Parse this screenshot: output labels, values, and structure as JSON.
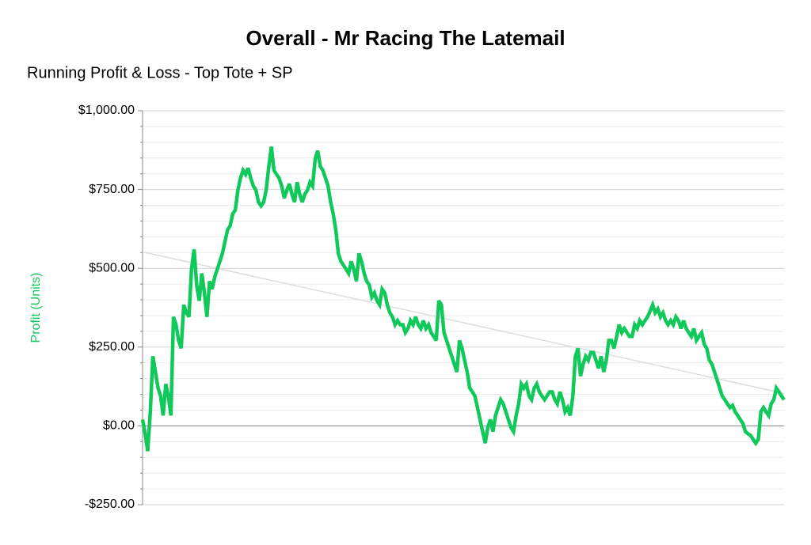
{
  "chart_data": {
    "type": "line",
    "title": "Overall - Mr Racing The Latemail",
    "subtitle": "Running Profit & Loss - Top Tote + SP",
    "y_label": "Profit (Units)",
    "color": "#10c95a",
    "ylim": [
      -250,
      1000
    ],
    "yticks": [
      {
        "value": -250,
        "label": "-$250.00"
      },
      {
        "value": 0,
        "label": "$0.00"
      },
      {
        "value": 250,
        "label": "$250.00"
      },
      {
        "value": 500,
        "label": "$500.00"
      },
      {
        "value": 750,
        "label": "$750.00"
      },
      {
        "value": 1000,
        "label": "$1,000.00"
      }
    ],
    "minor_yticks": [
      -200,
      -150,
      -100,
      -50,
      50,
      100,
      150,
      200,
      300,
      350,
      400,
      450,
      550,
      600,
      650,
      700,
      800,
      850,
      900,
      950
    ],
    "grid": true,
    "zero_line": true,
    "trend_line": {
      "values": [
        552,
        103
      ],
      "color": "#dddddd"
    },
    "values": [
      20,
      -25,
      -80,
      45,
      221,
      171,
      120,
      95,
      33,
      133,
      95,
      33,
      346,
      321,
      271,
      246,
      384,
      359,
      346,
      497,
      560,
      447,
      397,
      484,
      422,
      346,
      459,
      434,
      472,
      497,
      522,
      547,
      585,
      622,
      635,
      673,
      685,
      748,
      786,
      811,
      798,
      818,
      786,
      761,
      748,
      710,
      698,
      710,
      748,
      823,
      886,
      811,
      798,
      786,
      761,
      723,
      748,
      768,
      735,
      710,
      773,
      735,
      710,
      735,
      748,
      773,
      761,
      848,
      873,
      823,
      811,
      786,
      761,
      710,
      673,
      622,
      547,
      522,
      510,
      497,
      484,
      522,
      497,
      459,
      547,
      522,
      484,
      459,
      447,
      409,
      422,
      397,
      384,
      434,
      422,
      384,
      359,
      346,
      321,
      334,
      321,
      321,
      296,
      309,
      334,
      321,
      346,
      321,
      309,
      334,
      309,
      321,
      296,
      284,
      271,
      397,
      384,
      296,
      271,
      246,
      221,
      196,
      171,
      271,
      246,
      208,
      171,
      120,
      108,
      95,
      58,
      20,
      -18,
      -55,
      -5,
      20,
      -18,
      33,
      58,
      83,
      70,
      45,
      20,
      -5,
      -18,
      33,
      70,
      133,
      120,
      133,
      95,
      83,
      120,
      133,
      108,
      95,
      83,
      95,
      108,
      108,
      83,
      70,
      108,
      83,
      45,
      58,
      33,
      95,
      221,
      246,
      158,
      196,
      221,
      208,
      233,
      233,
      208,
      183,
      221,
      171,
      208,
      271,
      271,
      246,
      284,
      321,
      296,
      309,
      296,
      284,
      284,
      321,
      309,
      334,
      321,
      334,
      346,
      364,
      384,
      359,
      371,
      346,
      359,
      334,
      321,
      334,
      321,
      346,
      334,
      309,
      334,
      309,
      296,
      284,
      309,
      271,
      284,
      296,
      259,
      246,
      208,
      196,
      171,
      146,
      120,
      95,
      83,
      70,
      58,
      65,
      45,
      33,
      20,
      8,
      -18,
      -25,
      -30,
      -43,
      -55,
      -43,
      45,
      58,
      45,
      33,
      70,
      83,
      120,
      108,
      95,
      83
    ]
  }
}
